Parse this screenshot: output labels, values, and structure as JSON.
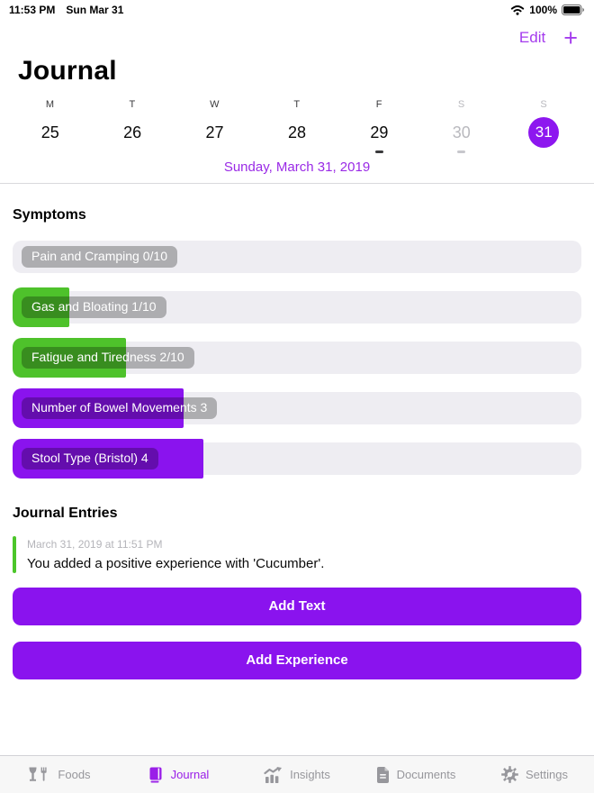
{
  "status_bar": {
    "time": "11:53 PM",
    "date": "Sun Mar 31",
    "battery_percent": "100%"
  },
  "nav": {
    "edit_label": "Edit",
    "add_label": "+"
  },
  "header": {
    "title": "Journal",
    "selected_date_label": "Sunday, March 31, 2019"
  },
  "week": {
    "days": [
      {
        "letter": "M",
        "num": "25"
      },
      {
        "letter": "T",
        "num": "26"
      },
      {
        "letter": "W",
        "num": "27"
      },
      {
        "letter": "T",
        "num": "28"
      },
      {
        "letter": "F",
        "num": "29",
        "indicator": "dark"
      },
      {
        "letter": "S",
        "num": "30",
        "indicator": "gray",
        "muted": true
      },
      {
        "letter": "S",
        "num": "31",
        "selected": true
      }
    ]
  },
  "symptoms": {
    "heading": "Symptoms",
    "items": [
      {
        "label": "Pain and Cramping 0/10",
        "value": 0,
        "max": 10,
        "percent": 0,
        "color": "green"
      },
      {
        "label": "Gas and Bloating 1/10",
        "value": 1,
        "max": 10,
        "percent": 10,
        "color": "green"
      },
      {
        "label": "Fatigue and Tiredness 2/10",
        "value": 2,
        "max": 10,
        "percent": 20,
        "color": "green"
      },
      {
        "label": "Number of Bowel Movements 3",
        "value": 3,
        "percent": 30,
        "color": "purple"
      },
      {
        "label": "Stool Type (Bristol) 4",
        "value": 4,
        "percent": 33.5,
        "color": "purple"
      }
    ]
  },
  "journal": {
    "heading": "Journal Entries",
    "entries": [
      {
        "timestamp": "March 31, 2019 at 11:51 PM",
        "text": "You added a positive experience with 'Cucumber'."
      }
    ],
    "add_text_label": "Add Text",
    "add_experience_label": "Add Experience"
  },
  "tab_bar": {
    "items": [
      {
        "label": "Foods",
        "active": false
      },
      {
        "label": "Journal",
        "active": true
      },
      {
        "label": "Insights",
        "active": false
      },
      {
        "label": "Documents",
        "active": false
      },
      {
        "label": "Settings",
        "active": false
      }
    ]
  },
  "colors": {
    "green": "#4ec22b",
    "purple": "#8a13ee",
    "accent_purple": "#8d17ef",
    "tint_purple": "#a43bed",
    "date_purple": "#9a2ae6",
    "track_gray": "#eeedf2"
  }
}
